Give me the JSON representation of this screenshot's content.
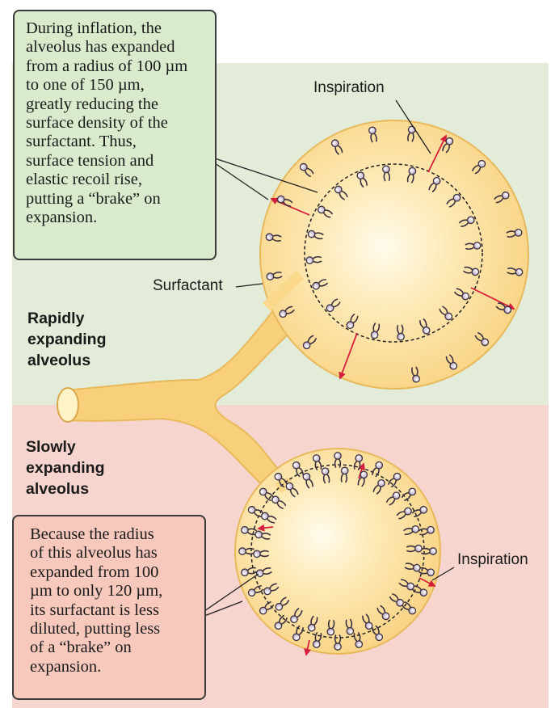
{
  "colors": {
    "top_background": "#e2ecd9",
    "bottom_background": "#f6d5ce",
    "top_callout_fill": "#d9eacd",
    "bottom_callout_fill": "#f7c9bd",
    "alveolus_fill": "#fbd98c",
    "alveolus_edge": "#e8b95a",
    "arrow": "#d41f3c"
  },
  "top_callout": {
    "lines": [
      "During inflation, the",
      "alveolus has expanded",
      "from a radius of 100 µm",
      "to one of  150 µm,",
      "greatly reducing the",
      "surface density of the",
      "surfactant. Thus,",
      "surface tension and",
      "elastic recoil rise,",
      "putting a “brake” on",
      "expansion."
    ]
  },
  "bottom_callout": {
    "lines": [
      "Because the radius",
      "of this alveolus has",
      "expanded from 100",
      "µm to only 120 µm,",
      "its surfactant is less",
      "diluted, putting less",
      "of a “brake” on",
      "expansion."
    ]
  },
  "labels": {
    "inspiration_top": "Inspiration",
    "surfactant": "Surfactant",
    "inspiration_bottom": "Inspiration"
  },
  "headings": {
    "rapid": [
      "Rapidly",
      "expanding",
      "alveolus"
    ],
    "slow": [
      "Slowly",
      "expanding",
      "alveolus"
    ]
  },
  "icons": [
    "surfactant-molecule-icon",
    "expansion-arrow-icon"
  ]
}
